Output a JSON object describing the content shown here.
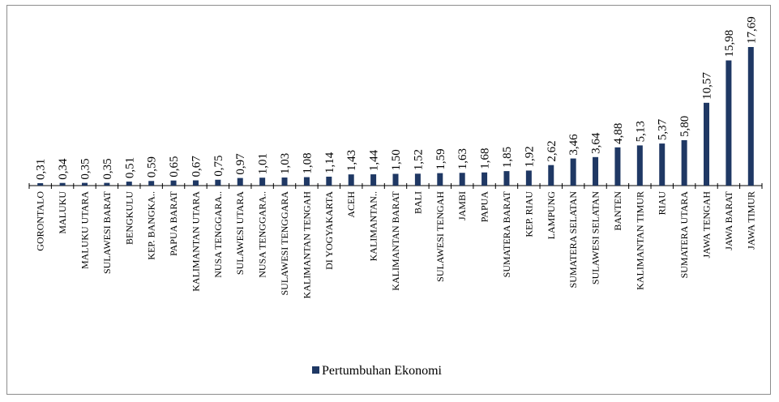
{
  "chart_data": {
    "type": "bar",
    "categories": [
      "GORONTALO",
      "MALUKU",
      "MALUKU UTARA",
      "SULAWESI BARAT",
      "BENGKULU",
      "KEP. BANGKA..",
      "PAPUA BARAT",
      "KALIMANTAN UTARA",
      "NUSA TENGGARA..",
      "SULAWESI UTARA",
      "NUSA TENGGARA..",
      "SULAWESI TENGGARA",
      "KALIMANTAN TENGAH",
      "DI YOGYAKARTA",
      "ACEH",
      "KALIMANTAN..",
      "KALIMANTAN BARAT",
      "BALI",
      "SULAWESI TENGAH",
      "JAMBI",
      "PAPUA",
      "SUMATERA BARAT",
      "KEP. RIAU",
      "LAMPUNG",
      "SUMATERA SELATAN",
      "SULAWESI SELATAN",
      "BANTEN",
      "KALIMANTAN TIMUR",
      "RIAU",
      "SUMATERA UTARA",
      "JAWA TENGAH",
      "JAWA BARAT",
      "JAWA TIMUR"
    ],
    "series": [
      {
        "name": "Pertumbuhan Ekonomi",
        "color": "#1f3864",
        "values": [
          0.31,
          0.34,
          0.35,
          0.35,
          0.51,
          0.59,
          0.65,
          0.67,
          0.75,
          0.97,
          1.01,
          1.03,
          1.08,
          1.14,
          1.43,
          1.44,
          1.5,
          1.52,
          1.59,
          1.63,
          1.68,
          1.85,
          1.92,
          2.62,
          3.46,
          3.64,
          4.88,
          5.13,
          5.37,
          5.8,
          10.57,
          15.98,
          17.69
        ],
        "value_labels": [
          "0,31",
          "0,34",
          "0,35",
          "0,35",
          "0,51",
          "0,59",
          "0,65",
          "0,67",
          "0,75",
          "0,97",
          "1,01",
          "1,03",
          "1,08",
          "1,14",
          "1,43",
          "1,44",
          "1,50",
          "1,52",
          "1,59",
          "1,63",
          "1,68",
          "1,85",
          "1,92",
          "2,62",
          "3,46",
          "3,64",
          "4,88",
          "5,13",
          "5,37",
          "5,80",
          "10,57",
          "15,98",
          "17,69"
        ]
      }
    ],
    "legend": "bottom"
  }
}
